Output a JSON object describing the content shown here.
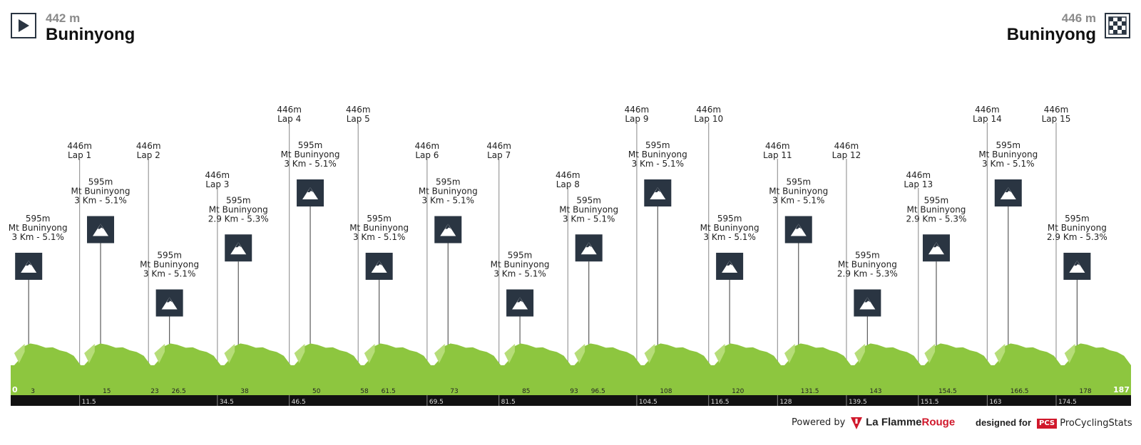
{
  "start": {
    "altitude": "442 m",
    "name": "Buninyong",
    "icon": "play-icon"
  },
  "finish": {
    "altitude": "446 m",
    "name": "Buninyong",
    "icon": "checkered-flag-icon"
  },
  "footer": {
    "powered_by": "Powered by",
    "flamme_la": "La Flamme",
    "flamme_rouge": "Rouge",
    "designed_for": "designed for",
    "pcs_badge": "PCS",
    "pcs_name": "ProCyclingStats"
  },
  "colors": {
    "profile": "#8dc63f",
    "profile_light": "#b6dd78",
    "axis": "#111111",
    "marker": "#2a3542"
  },
  "chart_data": {
    "type": "area",
    "xlim": [
      0,
      187
    ],
    "total_km": 187,
    "start_km_label": "0",
    "end_km_label": "187",
    "laps": [
      {
        "km": 11.5,
        "altitude": "446m",
        "name": "Lap 1",
        "tier": 1
      },
      {
        "km": 23,
        "altitude": "446m",
        "name": "Lap 2",
        "tier": 1
      },
      {
        "km": 34.5,
        "altitude": "446m",
        "name": "Lap 3",
        "tier": 2
      },
      {
        "km": 46.5,
        "altitude": "446m",
        "name": "Lap 4",
        "tier": 0
      },
      {
        "km": 58,
        "altitude": "446m",
        "name": "Lap 5",
        "tier": 0
      },
      {
        "km": 69.5,
        "altitude": "446m",
        "name": "Lap 6",
        "tier": 1
      },
      {
        "km": 81.5,
        "altitude": "446m",
        "name": "Lap 7",
        "tier": 1
      },
      {
        "km": 93,
        "altitude": "446m",
        "name": "Lap 8",
        "tier": 2
      },
      {
        "km": 104.5,
        "altitude": "446m",
        "name": "Lap 9",
        "tier": 0
      },
      {
        "km": 116.5,
        "altitude": "446m",
        "name": "Lap 10",
        "tier": 0
      },
      {
        "km": 128,
        "altitude": "446m",
        "name": "Lap 11",
        "tier": 1
      },
      {
        "km": 139.5,
        "altitude": "446m",
        "name": "Lap 12",
        "tier": 1
      },
      {
        "km": 151.5,
        "altitude": "446m",
        "name": "Lap 13",
        "tier": 2
      },
      {
        "km": 163,
        "altitude": "446m",
        "name": "Lap 14",
        "tier": 0
      },
      {
        "km": 174.5,
        "altitude": "446m",
        "name": "Lap 15",
        "tier": 0
      }
    ],
    "climbs": [
      {
        "km": 3,
        "altitude": "595m",
        "name": "Mt Buninyong",
        "detail": "3 Km - 5.1%",
        "tier": 2
      },
      {
        "km": 15,
        "altitude": "595m",
        "name": "Mt Buninyong",
        "detail": "3 Km - 5.1%",
        "tier": 1
      },
      {
        "km": 26.5,
        "altitude": "595m",
        "name": "Mt Buninyong",
        "detail": "3 Km - 5.1%",
        "tier": 3
      },
      {
        "km": 38,
        "altitude": "595m",
        "name": "Mt Buninyong",
        "detail": "2.9 Km - 5.3%",
        "tier": 1.5
      },
      {
        "km": 50,
        "altitude": "595m",
        "name": "Mt Buninyong",
        "detail": "3 Km - 5.1%",
        "tier": 0
      },
      {
        "km": 61.5,
        "altitude": "595m",
        "name": "Mt Buninyong",
        "detail": "3 Km - 5.1%",
        "tier": 2
      },
      {
        "km": 73,
        "altitude": "595m",
        "name": "Mt Buninyong",
        "detail": "3 Km - 5.1%",
        "tier": 1
      },
      {
        "km": 85,
        "altitude": "595m",
        "name": "Mt Buninyong",
        "detail": "3 Km - 5.1%",
        "tier": 3
      },
      {
        "km": 96.5,
        "altitude": "595m",
        "name": "Mt Buninyong",
        "detail": "3 Km - 5.1%",
        "tier": 1.5
      },
      {
        "km": 108,
        "altitude": "595m",
        "name": "Mt Buninyong",
        "detail": "3 Km - 5.1%",
        "tier": 0
      },
      {
        "km": 120,
        "altitude": "595m",
        "name": "Mt Buninyong",
        "detail": "3 Km - 5.1%",
        "tier": 2
      },
      {
        "km": 131.5,
        "altitude": "595m",
        "name": "Mt Buninyong",
        "detail": "3 Km - 5.1%",
        "tier": 1
      },
      {
        "km": 143,
        "altitude": "595m",
        "name": "Mt Buninyong",
        "detail": "2.9 Km - 5.3%",
        "tier": 3
      },
      {
        "km": 154.5,
        "altitude": "595m",
        "name": "Mt Buninyong",
        "detail": "2.9 Km - 5.3%",
        "tier": 1.5
      },
      {
        "km": 166.5,
        "altitude": "595m",
        "name": "Mt Buninyong",
        "detail": "3 Km - 5.1%",
        "tier": 0
      },
      {
        "km": 178,
        "altitude": "595m",
        "name": "Mt Buninyong",
        "detail": "2.9 Km - 5.3%",
        "tier": 2
      }
    ],
    "top_ticks": [
      "3",
      "15",
      "23",
      "26.5",
      "38",
      "50",
      "58",
      "61.5",
      "73",
      "85",
      "93",
      "96.5",
      "108",
      "120",
      "131.5",
      "143",
      "154.5",
      "166.5",
      "178"
    ],
    "bottom_ticks": [
      "11.5",
      "34.5",
      "46.5",
      "69.5",
      "81.5",
      "104.5",
      "116.5",
      "128",
      "139.5",
      "151.5",
      "163",
      "174.5"
    ]
  }
}
